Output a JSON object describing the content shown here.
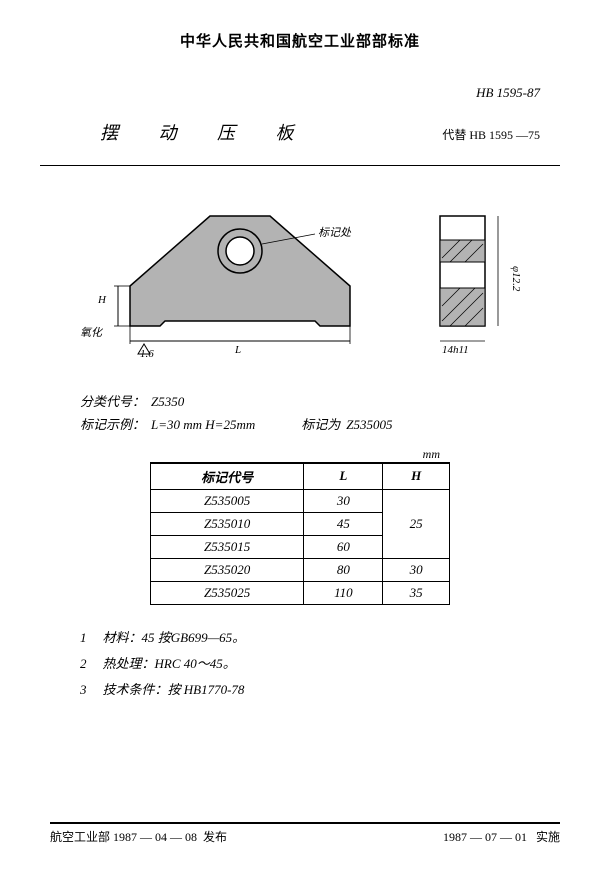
{
  "header": {
    "org": "中华人民共和国航空工业部部标准",
    "std_no": "HB 1595-87",
    "title": "摆 动 压 板",
    "replaces_label": "代替",
    "replaces_no": "HB 1595 —75"
  },
  "drawing": {
    "callout": "标记处",
    "dim_H": "H",
    "dim_L": "L",
    "dim_tol": "1.6",
    "oxidize": "氧化",
    "side_dia": "φ12.2",
    "side_width": "14h11",
    "part_fill": "#b3b3b3",
    "hatch_stroke": "#000000"
  },
  "notes": {
    "class_label": "分类代号：",
    "class_value": "Z5350",
    "example_label": "标记示例：",
    "example_value": "L=30 mm   H=25mm",
    "example_mark_label": "标记为",
    "example_mark_value": "Z535005"
  },
  "table": {
    "unit": "mm",
    "headers": [
      "标记代号",
      "L",
      "H"
    ],
    "rows": [
      {
        "code": "Z535005",
        "L": "30",
        "H": "25",
        "rowspan_h": 3
      },
      {
        "code": "Z535010",
        "L": "45",
        "H": null
      },
      {
        "code": "Z535015",
        "L": "60",
        "H": null
      },
      {
        "code": "Z535020",
        "L": "80",
        "H": "30",
        "rowspan_h": 1
      },
      {
        "code": "Z535025",
        "L": "110",
        "H": "35",
        "rowspan_h": 1
      }
    ]
  },
  "specs": [
    {
      "n": "1",
      "label": "材料：",
      "value": "45  按GB699—65。"
    },
    {
      "n": "2",
      "label": "热处理：",
      "value": "HRC 40～45。"
    },
    {
      "n": "3",
      "label": "技术条件：",
      "value": "按 HB1770-78"
    }
  ],
  "footer": {
    "left_org": "航空工业部",
    "left_date": "1987 — 04 — 08",
    "left_action": "发布",
    "right_date": "1987 — 07 — 01",
    "right_action": "实施"
  }
}
